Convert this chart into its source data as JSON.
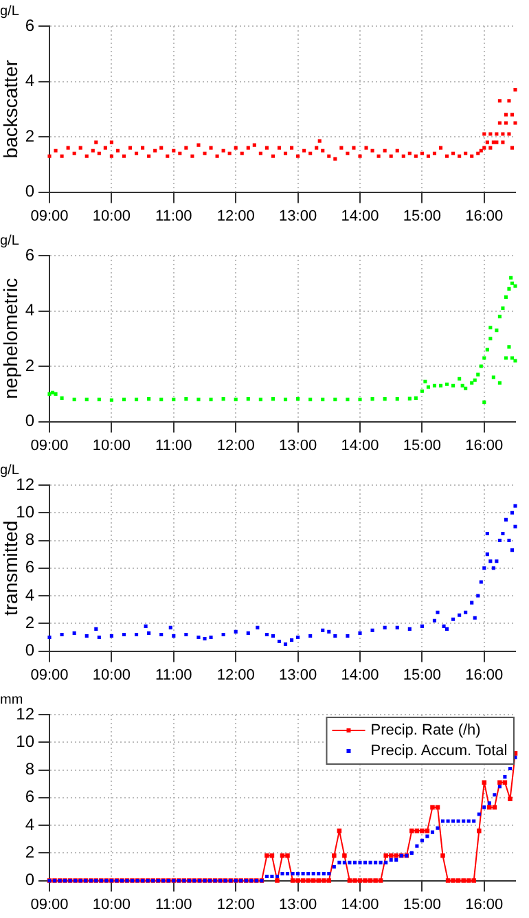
{
  "chart_data": [
    {
      "type": "scatter",
      "subtitle": "g/L",
      "ylabel": "backscatter",
      "xlim": [
        9,
        16.5
      ],
      "xticks": [
        {
          "value": 9,
          "label": "09:00"
        },
        {
          "value": 10,
          "label": "10:00"
        },
        {
          "value": 11,
          "label": "11:00"
        },
        {
          "value": 12,
          "label": "12:00"
        },
        {
          "value": 13,
          "label": "13:00"
        },
        {
          "value": 14,
          "label": "14:00"
        },
        {
          "value": 15,
          "label": "15:00"
        },
        {
          "value": 16,
          "label": "16:00"
        }
      ],
      "ylim": [
        0,
        6
      ],
      "yticks": [
        0,
        2,
        4,
        6
      ],
      "grid": true,
      "marker": "square",
      "x": [
        9.0,
        9.1,
        9.2,
        9.3,
        9.4,
        9.5,
        9.6,
        9.7,
        9.75,
        9.8,
        9.9,
        10.0,
        10.0,
        10.1,
        10.2,
        10.3,
        10.4,
        10.5,
        10.6,
        10.7,
        10.8,
        10.9,
        11.0,
        11.1,
        11.2,
        11.3,
        11.4,
        11.5,
        11.6,
        11.7,
        11.8,
        11.9,
        12.0,
        12.1,
        12.2,
        12.3,
        12.4,
        12.5,
        12.6,
        12.7,
        12.8,
        12.9,
        13.0,
        13.1,
        13.2,
        13.3,
        13.35,
        13.4,
        13.5,
        13.6,
        13.7,
        13.8,
        13.9,
        14.0,
        14.1,
        14.2,
        14.3,
        14.4,
        14.5,
        14.6,
        14.7,
        14.8,
        14.9,
        15.0,
        15.1,
        15.2,
        15.3,
        15.4,
        15.5,
        15.6,
        15.7,
        15.8,
        15.9,
        15.95,
        16.0,
        16.0,
        16.05,
        16.1,
        16.1,
        16.15,
        16.2,
        16.2,
        16.25,
        16.25,
        16.3,
        16.3,
        16.35,
        16.35,
        16.4,
        16.4,
        16.45,
        16.45,
        16.5,
        16.5
      ],
      "series": [
        {
          "color": "#ff0000",
          "values": [
            1.3,
            1.5,
            1.3,
            1.6,
            1.4,
            1.6,
            1.3,
            1.5,
            1.8,
            1.4,
            1.6,
            1.8,
            1.3,
            1.5,
            1.3,
            1.6,
            1.4,
            1.6,
            1.3,
            1.5,
            1.6,
            1.3,
            1.5,
            1.4,
            1.6,
            1.3,
            1.7,
            1.4,
            1.6,
            1.3,
            1.5,
            1.4,
            1.6,
            1.4,
            1.6,
            1.7,
            1.4,
            1.6,
            1.3,
            1.6,
            1.4,
            1.6,
            1.3,
            1.5,
            1.4,
            1.6,
            1.85,
            1.5,
            1.3,
            1.2,
            1.6,
            1.4,
            1.6,
            1.3,
            1.6,
            1.5,
            1.3,
            1.5,
            1.3,
            1.5,
            1.3,
            1.4,
            1.3,
            1.4,
            1.3,
            1.4,
            1.6,
            1.3,
            1.4,
            1.3,
            1.4,
            1.3,
            1.4,
            1.5,
            2.1,
            1.6,
            1.8,
            2.1,
            1.6,
            1.8,
            2.1,
            1.8,
            3.3,
            2.5,
            2.1,
            1.8,
            2.8,
            2.5,
            3.3,
            2.1,
            2.8,
            1.6,
            3.7,
            2.5
          ]
        }
      ]
    },
    {
      "type": "scatter",
      "subtitle": "g/L",
      "ylabel": "nephelometric",
      "xlim": [
        9,
        16.5
      ],
      "xticks": [
        {
          "value": 9,
          "label": "09:00"
        },
        {
          "value": 10,
          "label": "10:00"
        },
        {
          "value": 11,
          "label": "11:00"
        },
        {
          "value": 12,
          "label": "12:00"
        },
        {
          "value": 13,
          "label": "13:00"
        },
        {
          "value": 14,
          "label": "14:00"
        },
        {
          "value": 15,
          "label": "15:00"
        },
        {
          "value": 16,
          "label": "16:00"
        }
      ],
      "ylim": [
        0,
        6
      ],
      "yticks": [
        0,
        2,
        4,
        6
      ],
      "grid": true,
      "marker": "square",
      "x": [
        9.0,
        9.05,
        9.1,
        9.2,
        9.4,
        9.6,
        9.8,
        10.0,
        10.2,
        10.4,
        10.6,
        10.8,
        11.0,
        11.2,
        11.4,
        11.6,
        11.8,
        12.0,
        12.2,
        12.4,
        12.6,
        12.8,
        13.0,
        13.2,
        13.4,
        13.6,
        13.8,
        14.0,
        14.2,
        14.4,
        14.6,
        14.8,
        14.9,
        15.0,
        15.05,
        15.1,
        15.2,
        15.3,
        15.4,
        15.5,
        15.6,
        15.65,
        15.7,
        15.8,
        15.85,
        15.9,
        15.95,
        16.0,
        16.0,
        16.05,
        16.1,
        16.1,
        16.15,
        16.2,
        16.25,
        16.25,
        16.3,
        16.35,
        16.35,
        16.4,
        16.4,
        16.43,
        16.45,
        16.45,
        16.5,
        16.5
      ],
      "series": [
        {
          "color": "#00ff00",
          "values": [
            1.0,
            1.05,
            1.0,
            0.85,
            0.8,
            0.8,
            0.8,
            0.78,
            0.8,
            0.8,
            0.82,
            0.8,
            0.8,
            0.82,
            0.8,
            0.8,
            0.82,
            0.8,
            0.82,
            0.8,
            0.82,
            0.8,
            0.82,
            0.8,
            0.8,
            0.8,
            0.8,
            0.8,
            0.82,
            0.82,
            0.82,
            0.83,
            0.85,
            1.1,
            1.45,
            1.25,
            1.3,
            1.3,
            1.35,
            1.3,
            1.55,
            1.3,
            1.2,
            1.4,
            1.5,
            1.7,
            2.0,
            2.3,
            0.7,
            2.6,
            3.0,
            3.4,
            1.6,
            3.3,
            3.8,
            1.4,
            4.1,
            4.5,
            2.3,
            4.8,
            2.7,
            5.2,
            5.0,
            2.3,
            4.9,
            2.2
          ]
        }
      ]
    },
    {
      "type": "scatter",
      "subtitle": "g/L",
      "ylabel": "transmitted",
      "xlim": [
        9,
        16.5
      ],
      "xticks": [
        {
          "value": 9,
          "label": "09:00"
        },
        {
          "value": 10,
          "label": "10:00"
        },
        {
          "value": 11,
          "label": "11:00"
        },
        {
          "value": 12,
          "label": "12:00"
        },
        {
          "value": 13,
          "label": "13:00"
        },
        {
          "value": 14,
          "label": "14:00"
        },
        {
          "value": 15,
          "label": "15:00"
        },
        {
          "value": 16,
          "label": "16:00"
        }
      ],
      "ylim": [
        0,
        12
      ],
      "yticks": [
        0,
        2,
        4,
        6,
        8,
        10,
        12
      ],
      "grid": true,
      "marker": "square",
      "x": [
        9.0,
        9.2,
        9.4,
        9.6,
        9.75,
        9.8,
        10.0,
        10.2,
        10.4,
        10.55,
        10.6,
        10.8,
        10.95,
        11.0,
        11.2,
        11.4,
        11.5,
        11.6,
        11.8,
        12.0,
        12.2,
        12.35,
        12.5,
        12.6,
        12.7,
        12.8,
        12.9,
        13.0,
        13.2,
        13.4,
        13.5,
        13.6,
        13.8,
        14.0,
        14.2,
        14.4,
        14.6,
        14.8,
        15.0,
        15.2,
        15.25,
        15.35,
        15.4,
        15.5,
        15.6,
        15.7,
        15.8,
        15.85,
        15.9,
        15.95,
        16.0,
        16.05,
        16.05,
        16.1,
        16.15,
        16.2,
        16.25,
        16.3,
        16.35,
        16.4,
        16.45,
        16.45,
        16.5,
        16.5
      ],
      "series": [
        {
          "color": "#0000ff",
          "values": [
            1.0,
            1.2,
            1.3,
            1.1,
            1.6,
            1.0,
            1.1,
            1.2,
            1.2,
            1.8,
            1.3,
            1.2,
            1.7,
            1.1,
            1.2,
            1.0,
            0.9,
            1.0,
            1.2,
            1.4,
            1.3,
            1.7,
            1.2,
            1.1,
            0.7,
            0.5,
            0.8,
            1.0,
            1.1,
            1.5,
            1.4,
            1.1,
            1.1,
            1.3,
            1.5,
            1.7,
            1.7,
            1.6,
            1.8,
            2.2,
            2.8,
            1.8,
            1.6,
            2.3,
            2.6,
            2.8,
            3.5,
            2.4,
            4.0,
            5.0,
            6.0,
            7.0,
            8.5,
            6.5,
            6.0,
            6.5,
            8.0,
            8.5,
            9.5,
            8.0,
            7.3,
            10.0,
            10.5,
            9.0
          ]
        }
      ]
    },
    {
      "type": "line",
      "subtitle": "mm",
      "xlim": [
        9,
        16.5
      ],
      "xticks": [
        {
          "value": 9,
          "label": "09:00"
        },
        {
          "value": 10,
          "label": "10:00"
        },
        {
          "value": 11,
          "label": "11:00"
        },
        {
          "value": 12,
          "label": "12:00"
        },
        {
          "value": 13,
          "label": "13:00"
        },
        {
          "value": 14,
          "label": "14:00"
        },
        {
          "value": 15,
          "label": "15:00"
        },
        {
          "value": 16,
          "label": "16:00"
        }
      ],
      "ylim": [
        0,
        12
      ],
      "yticks": [
        0,
        2,
        4,
        6,
        8,
        10,
        12
      ],
      "grid": true,
      "legend": "top right",
      "marker": "square",
      "x": [
        9,
        9.083,
        9.167,
        9.25,
        9.333,
        9.417,
        9.5,
        9.583,
        9.667,
        9.75,
        9.833,
        9.917,
        10,
        10.083,
        10.167,
        10.25,
        10.333,
        10.417,
        10.5,
        10.583,
        10.667,
        10.75,
        10.833,
        10.917,
        11,
        11.083,
        11.167,
        11.25,
        11.333,
        11.417,
        11.5,
        11.583,
        11.667,
        11.75,
        11.833,
        11.917,
        12,
        12.083,
        12.167,
        12.25,
        12.333,
        12.417,
        12.5,
        12.583,
        12.667,
        12.75,
        12.833,
        12.917,
        13,
        13.083,
        13.167,
        13.25,
        13.333,
        13.417,
        13.5,
        13.583,
        13.667,
        13.75,
        13.833,
        13.917,
        14,
        14.083,
        14.167,
        14.25,
        14.333,
        14.417,
        14.5,
        14.583,
        14.667,
        14.75,
        14.833,
        14.917,
        15,
        15.083,
        15.167,
        15.25,
        15.333,
        15.417,
        15.5,
        15.583,
        15.667,
        15.75,
        15.833,
        15.917,
        16,
        16.083,
        16.167,
        16.25,
        16.333,
        16.417,
        16.5
      ],
      "series": [
        {
          "name": "Precip. Rate (/h)",
          "color": "#ff0000",
          "values": [
            0,
            0,
            0,
            0,
            0,
            0,
            0,
            0,
            0,
            0,
            0,
            0,
            0,
            0,
            0,
            0,
            0,
            0,
            0,
            0,
            0,
            0,
            0,
            0,
            0,
            0,
            0,
            0,
            0,
            0,
            0,
            0,
            0,
            0,
            0,
            0,
            0,
            0,
            0,
            0,
            0,
            0,
            1.8,
            1.8,
            0,
            1.8,
            1.8,
            0,
            0,
            0,
            0,
            0,
            0,
            0,
            0,
            1.8,
            3.6,
            1.8,
            0,
            0,
            0,
            0,
            0,
            0,
            0,
            1.8,
            1.8,
            1.8,
            1.8,
            1.8,
            3.6,
            3.6,
            3.6,
            3.6,
            5.3,
            5.3,
            1.8,
            0,
            0,
            0,
            0,
            0,
            0,
            3.6,
            7.1,
            5.3,
            5.3,
            7.1,
            7.1,
            5.9,
            9.2
          ]
        },
        {
          "name": "Precip. Accum. Total",
          "type": "scatter",
          "color": "#0000ff",
          "values": [
            0,
            0,
            0,
            0,
            0,
            0,
            0,
            0,
            0,
            0,
            0,
            0,
            0,
            0,
            0,
            0,
            0,
            0,
            0,
            0,
            0,
            0,
            0,
            0,
            0,
            0,
            0,
            0,
            0,
            0,
            0,
            0,
            0,
            0,
            0,
            0,
            0,
            0,
            0,
            0,
            0,
            0,
            0.3,
            0.3,
            0.3,
            0.5,
            0.5,
            0.5,
            0.5,
            0.5,
            0.5,
            0.5,
            0.5,
            0.5,
            0.5,
            1.0,
            1.3,
            1.3,
            1.3,
            1.3,
            1.3,
            1.3,
            1.3,
            1.3,
            1.3,
            1.3,
            1.5,
            1.5,
            1.8,
            1.8,
            2.0,
            2.5,
            2.9,
            3.2,
            3.5,
            3.8,
            4.3,
            4.3,
            4.3,
            4.3,
            4.3,
            4.3,
            4.3,
            4.8,
            5.3,
            5.6,
            6.2,
            6.8,
            7.5,
            8.1,
            8.9
          ]
        }
      ]
    }
  ]
}
